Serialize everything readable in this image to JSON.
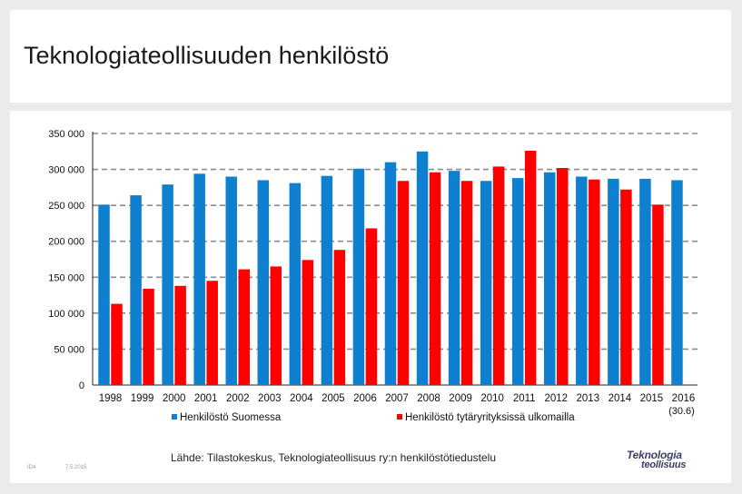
{
  "title": "Teknologiateollisuuden henkilöstö",
  "chart_data": {
    "type": "bar",
    "title": "Teknologiateollisuuden henkilöstö",
    "categories": [
      "1998",
      "1999",
      "2000",
      "2001",
      "2002",
      "2003",
      "2004",
      "2005",
      "2006",
      "2007",
      "2008",
      "2009",
      "2010",
      "2011",
      "2012",
      "2013",
      "2014",
      "2015",
      "2016"
    ],
    "last_category_note": "(30.6)",
    "series": [
      {
        "name": "Henkilöstö Suomessa",
        "color": "#0f7fd0",
        "values": [
          251000,
          264000,
          279000,
          294000,
          290000,
          285000,
          281000,
          291000,
          301000,
          310000,
          325000,
          298000,
          284000,
          288000,
          296000,
          290000,
          287000,
          287000,
          285000
        ]
      },
      {
        "name": "Henkilöstö tytäryrityksissä ulkomailla",
        "color": "#ff0000",
        "values": [
          113000,
          134000,
          138000,
          145000,
          161000,
          165000,
          174000,
          188000,
          218000,
          284000,
          296000,
          284000,
          304000,
          326000,
          302000,
          286000,
          272000,
          251000,
          null
        ]
      }
    ],
    "ylim": [
      0,
      350000
    ],
    "yticks": [
      0,
      50000,
      100000,
      150000,
      200000,
      250000,
      300000,
      350000
    ],
    "ytick_labels": [
      "0",
      "50 000",
      "100 000",
      "150 000",
      "200 000",
      "250 000",
      "300 000",
      "350 000"
    ],
    "xlabel": "",
    "ylabel": "",
    "grid": true,
    "grid_style": "dashed",
    "legend_position": "bottom"
  },
  "source": "Lähde: Tilastokeskus, Teknologiateollisuus ry:n henkilöstötiedustelu",
  "footer": {
    "left": "ID4",
    "date": "7.5.2015"
  },
  "logo": {
    "line1": "Teknologia",
    "line2": "teollisuus"
  }
}
